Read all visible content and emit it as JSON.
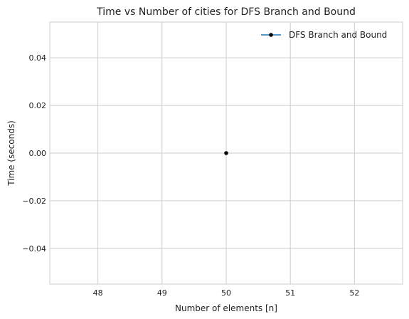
{
  "chart_data": {
    "type": "line",
    "title": "Time vs Number of cities for DFS Branch and Bound",
    "xlabel": "Number of elements [n]",
    "ylabel": "Time (seconds)",
    "xlim": [
      47.25,
      52.75
    ],
    "ylim": [
      -0.055,
      0.055
    ],
    "x_ticks": [
      "48",
      "49",
      "50",
      "51",
      "52"
    ],
    "y_ticks": [
      "0.04",
      "0.02",
      "0.00",
      "−0.02",
      "−0.04"
    ],
    "grid": true,
    "legend_position": "top-right",
    "series": [
      {
        "name": "DFS Branch and Bound",
        "x": [
          50
        ],
        "y": [
          0.0
        ],
        "line_color": "#1f77b4",
        "marker_color": "#000000"
      }
    ]
  }
}
